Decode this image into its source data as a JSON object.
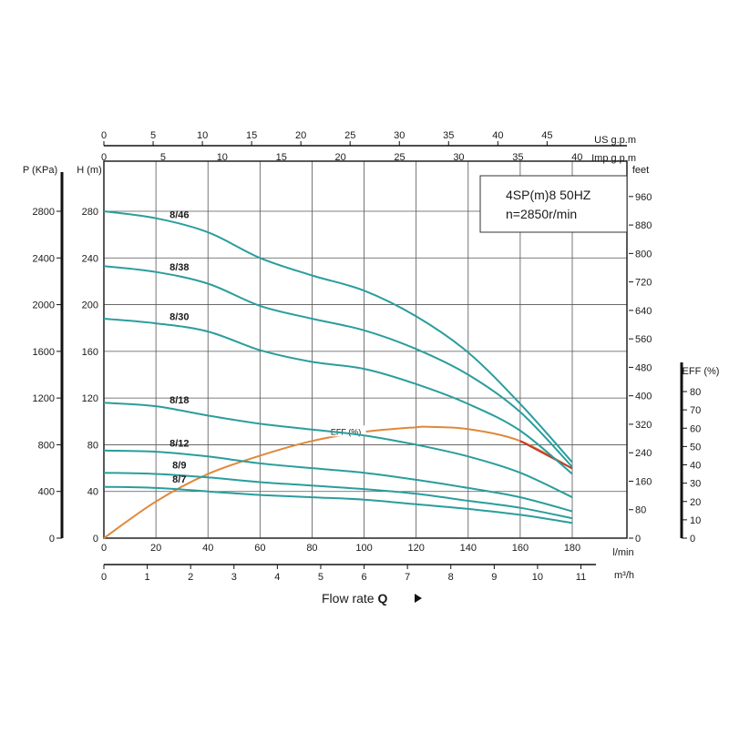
{
  "chart_data": {
    "type": "line",
    "model": "4SP(m)8  50HZ",
    "speed": "n=2850r/min",
    "xlabel": "Flow rate Q",
    "xlabel_bold": "Q",
    "x_main": {
      "unit": "l/min",
      "range": [
        0,
        180
      ],
      "ticks": [
        20,
        40,
        60,
        80,
        100,
        120,
        140,
        160,
        180
      ]
    },
    "x_m3h": {
      "unit": "m³/h",
      "range": [
        0,
        11
      ],
      "ticks": [
        0,
        1,
        2,
        3,
        4,
        5,
        6,
        7,
        8,
        9,
        10,
        11
      ]
    },
    "x_usgpm": {
      "unit": "US g.p.m",
      "range": [
        0,
        47.6
      ],
      "ticks": [
        0,
        5,
        10,
        15,
        20,
        25,
        30,
        35,
        40,
        45
      ]
    },
    "x_impgpm": {
      "unit": "Imp g.p.m",
      "range": [
        0,
        39.6
      ],
      "ticks": [
        0,
        5,
        10,
        15,
        20,
        25,
        30,
        35,
        40
      ]
    },
    "y_head": {
      "unit": "H (m)",
      "range": [
        0,
        280
      ],
      "ticks": [
        40,
        80,
        120,
        160,
        200,
        240,
        280
      ]
    },
    "y_pressure": {
      "unit": "P (KPa)",
      "range": [
        0,
        2800
      ],
      "ticks": [
        0,
        400,
        800,
        1200,
        1600,
        2000,
        2400,
        2800
      ]
    },
    "y_feet": {
      "unit": "feet",
      "range": [
        0,
        960
      ],
      "ticks": [
        0,
        80,
        160,
        240,
        320,
        400,
        480,
        560,
        640,
        720,
        800,
        880,
        960
      ]
    },
    "y_eff": {
      "unit": "EFF (%)",
      "range": [
        0,
        80
      ],
      "ticks": [
        0,
        10,
        20,
        30,
        40,
        50,
        60,
        70,
        80
      ]
    },
    "series": [
      {
        "name": "8/46",
        "color": "#2a9d9d",
        "x": [
          0,
          20,
          40,
          60,
          80,
          100,
          120,
          140,
          160,
          180
        ],
        "y": [
          280,
          274,
          262,
          240,
          225,
          212,
          190,
          159,
          115,
          65
        ]
      },
      {
        "name": "8/38",
        "color": "#2a9d9d",
        "x": [
          0,
          20,
          40,
          60,
          80,
          100,
          120,
          140,
          160,
          180
        ],
        "y": [
          233,
          228,
          218,
          199,
          188,
          178,
          162,
          140,
          108,
          61
        ]
      },
      {
        "name": "8/30",
        "color": "#2a9d9d",
        "x": [
          0,
          20,
          40,
          60,
          80,
          100,
          120,
          140,
          160,
          180
        ],
        "y": [
          188,
          184,
          177,
          161,
          151,
          145,
          132,
          115,
          92,
          55
        ]
      },
      {
        "name": "8/18",
        "color": "#2a9d9d",
        "x": [
          0,
          20,
          40,
          60,
          80,
          100,
          120,
          140,
          160,
          180
        ],
        "y": [
          116,
          113,
          105,
          98,
          93,
          88,
          80,
          70,
          56,
          35
        ]
      },
      {
        "name": "8/12",
        "color": "#2a9d9d",
        "x": [
          0,
          20,
          40,
          60,
          80,
          100,
          120,
          140,
          160,
          180
        ],
        "y": [
          75,
          74,
          70,
          64,
          60,
          56,
          50,
          43,
          35,
          23
        ]
      },
      {
        "name": "8/9",
        "color": "#2a9d9d",
        "x": [
          0,
          20,
          40,
          60,
          80,
          100,
          120,
          140,
          160,
          180
        ],
        "y": [
          56,
          55,
          52,
          48,
          45,
          42,
          38,
          32,
          26,
          17
        ]
      },
      {
        "name": "8/7",
        "color": "#2a9d9d",
        "x": [
          0,
          20,
          40,
          60,
          80,
          100,
          120,
          140,
          160,
          180
        ],
        "y": [
          44,
          43,
          40,
          37,
          35,
          33,
          29,
          25,
          20,
          13
        ]
      }
    ],
    "eff_curve": {
      "name": "EFF (%)",
      "color": "#e0883a",
      "x": [
        0,
        20,
        40,
        60,
        80,
        100,
        120,
        125,
        140,
        160,
        180
      ],
      "y": [
        0,
        20,
        35,
        45,
        53,
        58,
        60.5,
        60.7,
        59.5,
        53,
        38
      ]
    },
    "grid": true
  }
}
